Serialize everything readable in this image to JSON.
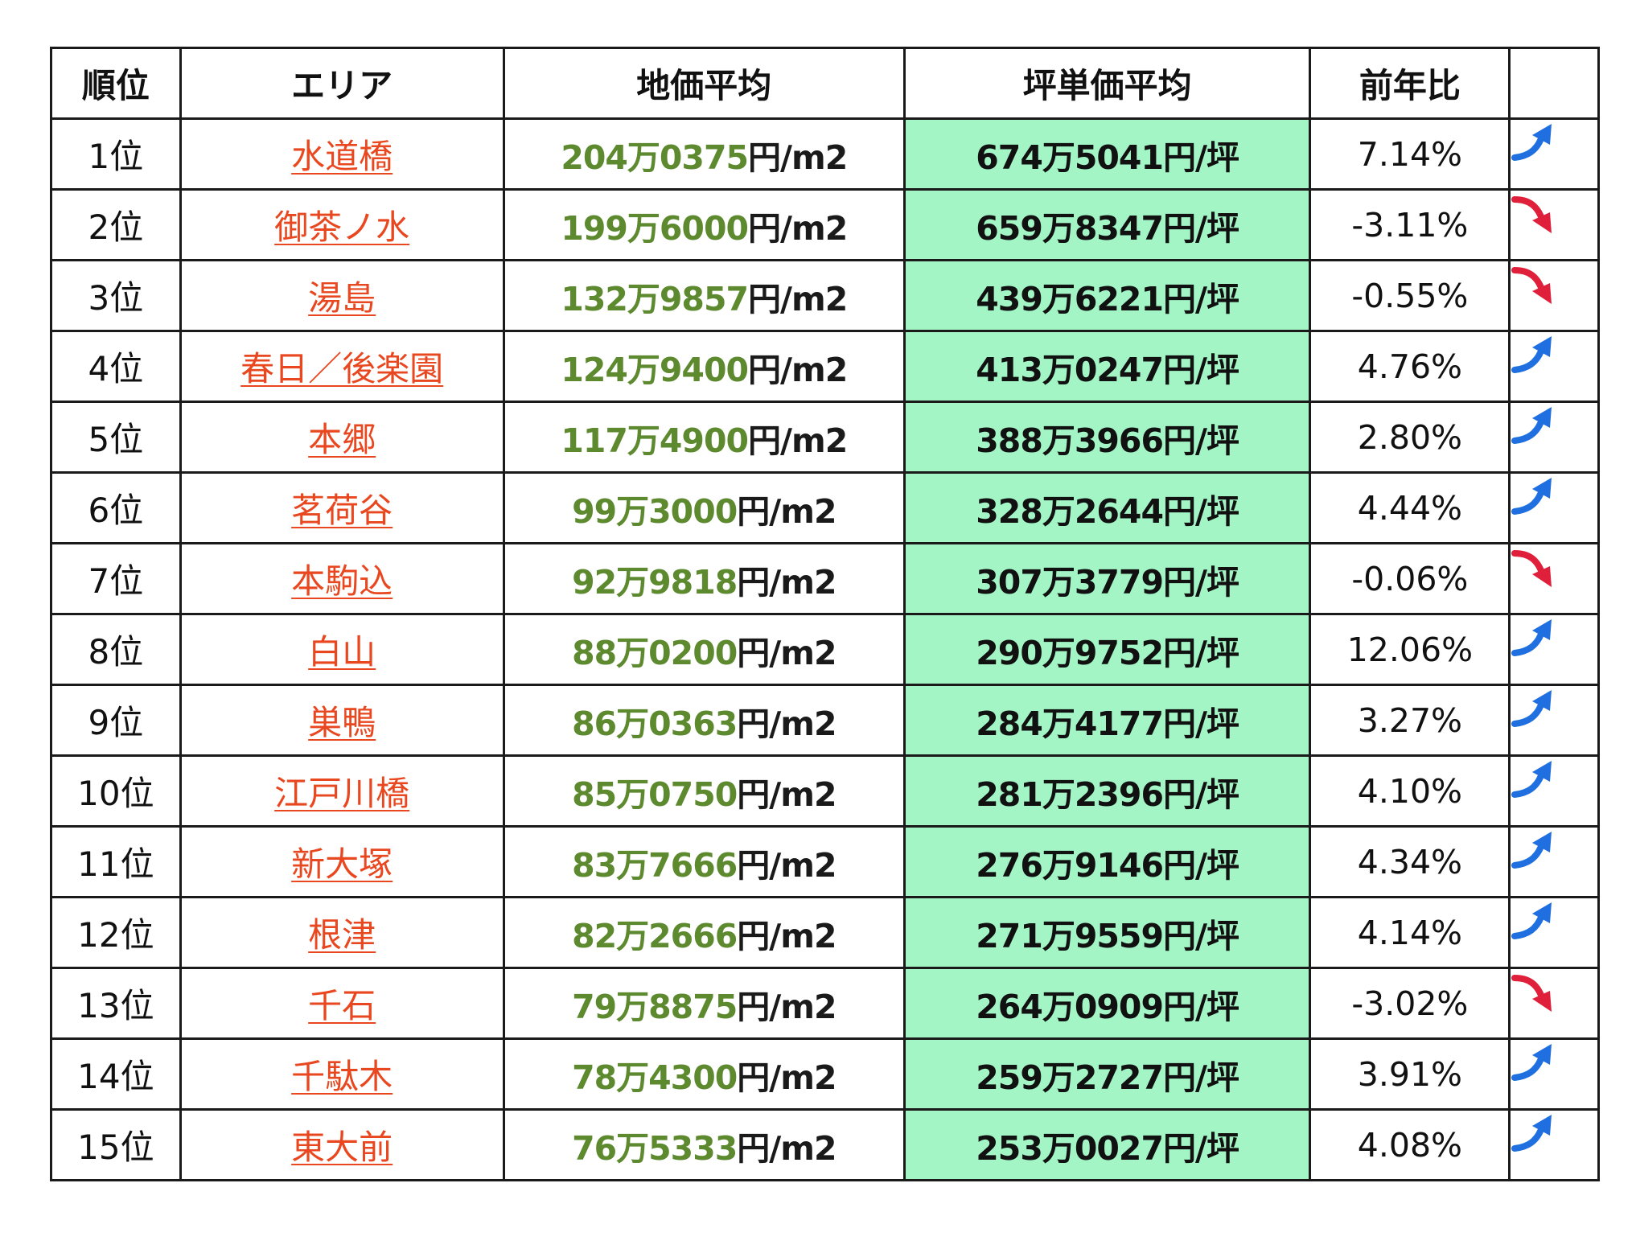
{
  "headers": {
    "rank": "順位",
    "area": "エリア",
    "land_price": "地価平均",
    "tsubo_price": "坪単価平均",
    "yoy": "前年比",
    "trend": ""
  },
  "colors": {
    "area_link": "#e8471f",
    "land_price_value": "#5e8a2f",
    "tsubo_column_bg": "#a3f5c6",
    "arrow_up": "#1f6fe0",
    "arrow_down": "#e0203a"
  },
  "rows": [
    {
      "rank": "1位",
      "area": "水道橋",
      "land_value": "204万0375",
      "land_unit": "円/m2",
      "tsubo": "674万5041円/坪",
      "yoy": "7.14%",
      "trend": "up",
      "trend_icon": "arrow-up-icon"
    },
    {
      "rank": "2位",
      "area": "御茶ノ水",
      "land_value": "199万6000",
      "land_unit": "円/m2",
      "tsubo": "659万8347円/坪",
      "yoy": "-3.11%",
      "trend": "down",
      "trend_icon": "arrow-down-icon"
    },
    {
      "rank": "3位",
      "area": "湯島",
      "land_value": "132万9857",
      "land_unit": "円/m2",
      "tsubo": "439万6221円/坪",
      "yoy": "-0.55%",
      "trend": "down",
      "trend_icon": "arrow-down-icon"
    },
    {
      "rank": "4位",
      "area": "春日／後楽園",
      "land_value": "124万9400",
      "land_unit": "円/m2",
      "tsubo": "413万0247円/坪",
      "yoy": "4.76%",
      "trend": "up",
      "trend_icon": "arrow-up-icon"
    },
    {
      "rank": "5位",
      "area": "本郷",
      "land_value": "117万4900",
      "land_unit": "円/m2",
      "tsubo": "388万3966円/坪",
      "yoy": "2.80%",
      "trend": "up",
      "trend_icon": "arrow-up-icon"
    },
    {
      "rank": "6位",
      "area": "茗荷谷",
      "land_value": "99万3000",
      "land_unit": "円/m2",
      "tsubo": "328万2644円/坪",
      "yoy": "4.44%",
      "trend": "up",
      "trend_icon": "arrow-up-icon"
    },
    {
      "rank": "7位",
      "area": "本駒込",
      "land_value": "92万9818",
      "land_unit": "円/m2",
      "tsubo": "307万3779円/坪",
      "yoy": "-0.06%",
      "trend": "down",
      "trend_icon": "arrow-down-icon"
    },
    {
      "rank": "8位",
      "area": "白山",
      "land_value": "88万0200",
      "land_unit": "円/m2",
      "tsubo": "290万9752円/坪",
      "yoy": "12.06%",
      "trend": "up",
      "trend_icon": "arrow-up-icon"
    },
    {
      "rank": "9位",
      "area": "巣鴨",
      "land_value": "86万0363",
      "land_unit": "円/m2",
      "tsubo": "284万4177円/坪",
      "yoy": "3.27%",
      "trend": "up",
      "trend_icon": "arrow-up-icon"
    },
    {
      "rank": "10位",
      "area": "江戸川橋",
      "land_value": "85万0750",
      "land_unit": "円/m2",
      "tsubo": "281万2396円/坪",
      "yoy": "4.10%",
      "trend": "up",
      "trend_icon": "arrow-up-icon"
    },
    {
      "rank": "11位",
      "area": "新大塚",
      "land_value": "83万7666",
      "land_unit": "円/m2",
      "tsubo": "276万9146円/坪",
      "yoy": "4.34%",
      "trend": "up",
      "trend_icon": "arrow-up-icon"
    },
    {
      "rank": "12位",
      "area": "根津",
      "land_value": "82万2666",
      "land_unit": "円/m2",
      "tsubo": "271万9559円/坪",
      "yoy": "4.14%",
      "trend": "up",
      "trend_icon": "arrow-up-icon"
    },
    {
      "rank": "13位",
      "area": "千石",
      "land_value": "79万8875",
      "land_unit": "円/m2",
      "tsubo": "264万0909円/坪",
      "yoy": "-3.02%",
      "trend": "down",
      "trend_icon": "arrow-down-icon"
    },
    {
      "rank": "14位",
      "area": "千駄木",
      "land_value": "78万4300",
      "land_unit": "円/m2",
      "tsubo": "259万2727円/坪",
      "yoy": "3.91%",
      "trend": "up",
      "trend_icon": "arrow-up-icon"
    },
    {
      "rank": "15位",
      "area": "東大前",
      "land_value": "76万5333",
      "land_unit": "円/m2",
      "tsubo": "253万0027円/坪",
      "yoy": "4.08%",
      "trend": "up",
      "trend_icon": "arrow-up-icon"
    }
  ]
}
